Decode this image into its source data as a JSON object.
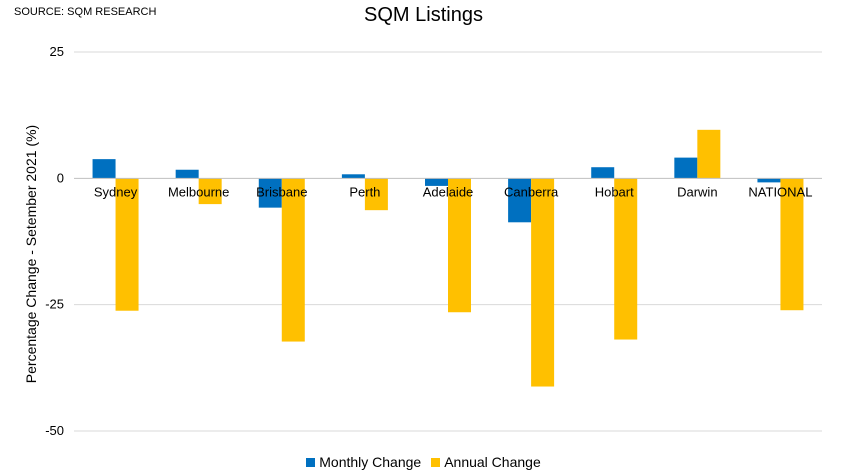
{
  "source_label": "SOURCE: SQM RESEARCH",
  "colors": {
    "monthly": "#0070C0",
    "annual": "#FFC000",
    "grid": "#d9d9d9",
    "axis": "#bfbfbf"
  },
  "chart_data": {
    "type": "bar",
    "title": "SQM Listings",
    "ylabel": "Percentage Change - Setember 2021 (%)",
    "xlabel": "",
    "ylim": [
      -50,
      25
    ],
    "yticks": [
      25,
      0,
      -25,
      -50
    ],
    "grid": true,
    "legend_position": "bottom",
    "categories": [
      "Sydney",
      "Melbourne",
      "Brisbane",
      "Perth",
      "Adelaide",
      "Canberra",
      "Hobart",
      "Darwin",
      "NATIONAL"
    ],
    "series": [
      {
        "name": "Monthly Change",
        "values": [
          3.8,
          1.7,
          -5.8,
          0.8,
          -1.5,
          -8.7,
          2.2,
          4.1,
          -0.8
        ]
      },
      {
        "name": "Annual Change",
        "values": [
          -26.2,
          -5.1,
          -32.3,
          -6.3,
          -26.5,
          -41.2,
          -31.9,
          9.6,
          -26.1
        ]
      }
    ]
  }
}
